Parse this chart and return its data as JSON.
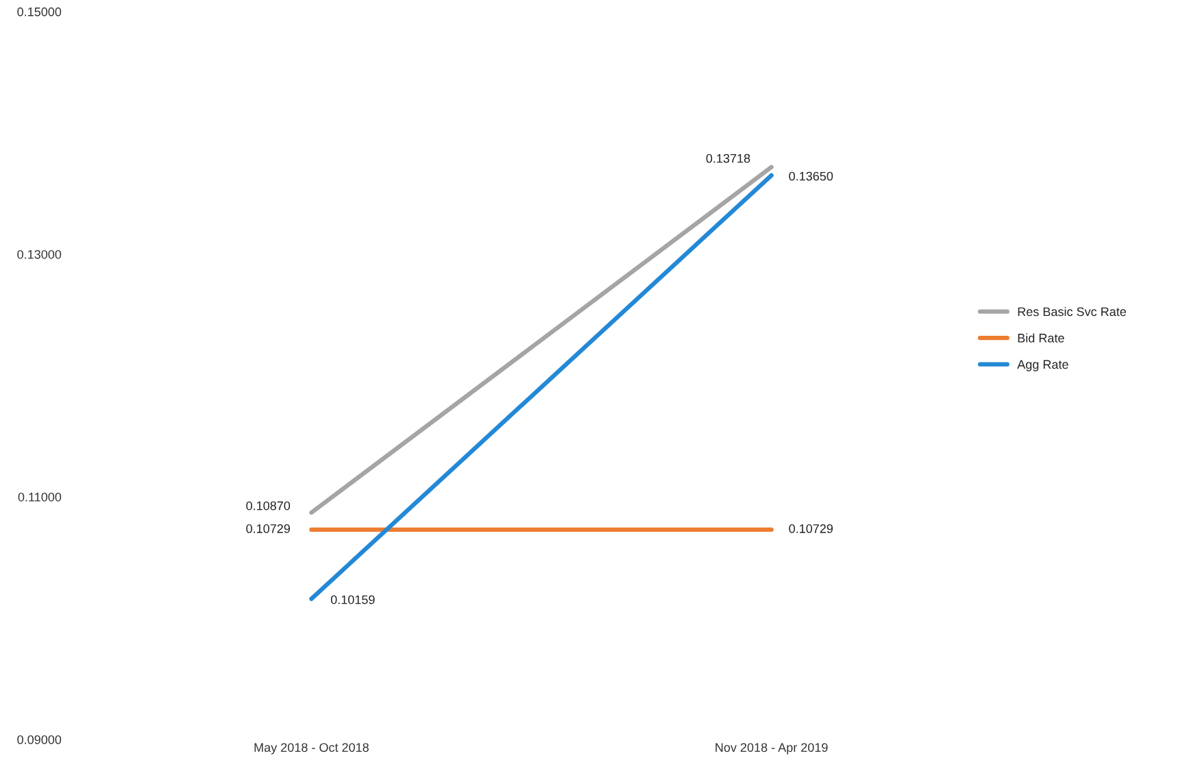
{
  "chart_data": {
    "type": "line",
    "categories": [
      "May 2018 - Oct 2018",
      "Nov 2018 - Apr 2019"
    ],
    "series": [
      {
        "name": "Res Basic Svc Rate",
        "color": "#a5a5a5",
        "values": [
          0.1087,
          0.13718
        ],
        "value_labels": [
          "0.10870",
          "0.13718"
        ]
      },
      {
        "name": "Bid Rate",
        "color": "#ed7d31",
        "values": [
          0.10729,
          0.10729
        ],
        "value_labels": [
          "0.10729",
          "0.10729"
        ]
      },
      {
        "name": "Agg Rate",
        "color": "#2389d6",
        "values": [
          0.10159,
          0.1365
        ],
        "value_labels": [
          "0.10159",
          "0.13650"
        ]
      }
    ],
    "ylim": [
      0.09,
      0.15
    ],
    "yticks": [
      {
        "value": 0.09,
        "label": "0.09000"
      },
      {
        "value": 0.11,
        "label": "0.11000"
      },
      {
        "value": 0.13,
        "label": "0.13000"
      },
      {
        "value": 0.15,
        "label": "0.15000"
      }
    ],
    "grid": false,
    "legend": "right",
    "marker": "none",
    "line_style": "solid"
  }
}
